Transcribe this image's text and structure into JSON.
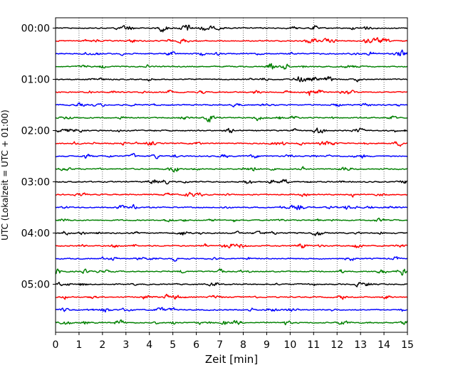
{
  "chart_data": {
    "type": "line",
    "title": "",
    "xlabel": "Zeit  [min]",
    "ylabel": "UTC (Lokalzeit = UTC + 01:00)",
    "xlim": [
      0,
      15
    ],
    "x_ticks": [
      "0",
      "1",
      "2",
      "3",
      "4",
      "5",
      "6",
      "7",
      "8",
      "9",
      "10",
      "11",
      "12",
      "13",
      "14",
      "15"
    ],
    "y_ticks": [
      "00:00",
      "01:00",
      "02:00",
      "03:00",
      "04:00",
      "05:00"
    ],
    "y_tick_traces": [
      0,
      4,
      8,
      12,
      16,
      20
    ],
    "trace_minutes": 15,
    "trace_count": 24,
    "trace_colors": [
      "#000000",
      "#ff0000",
      "#0000ff",
      "#008000"
    ],
    "grid": "vertical dotted",
    "legend": "none"
  }
}
